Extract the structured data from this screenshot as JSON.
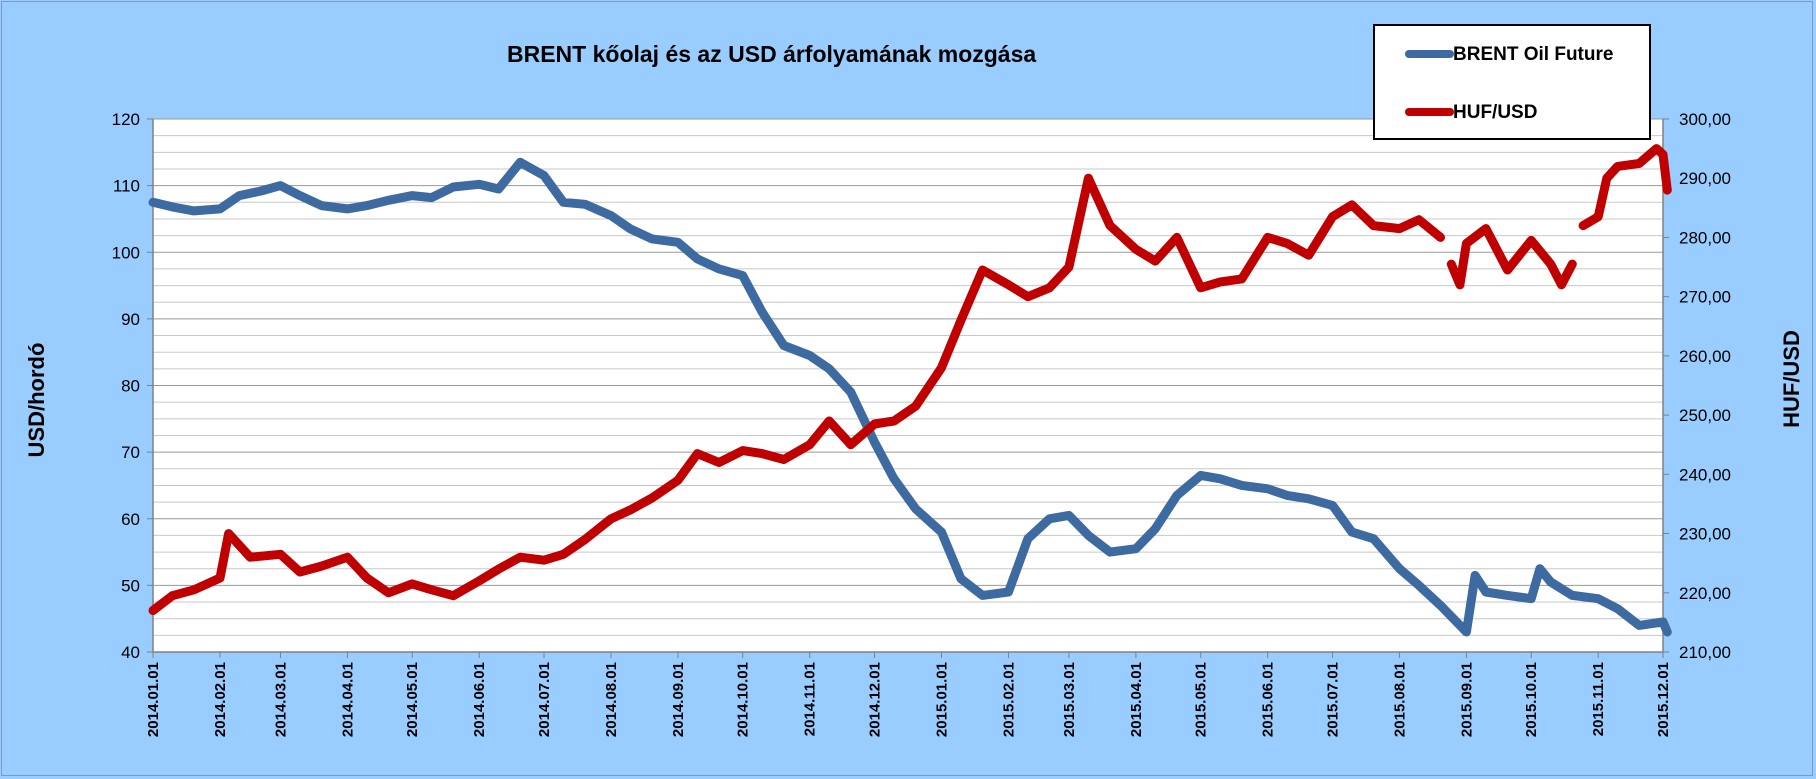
{
  "chart_data": {
    "type": "line",
    "title": "BRENT kőolaj és az USD árfolyamának mozgása",
    "ylabel": "USD/hordó",
    "y2label": "HUF/USD",
    "ylim": [
      40,
      120
    ],
    "y2lim": [
      210,
      300
    ],
    "y_ticks": [
      "120",
      "110",
      "100",
      "90",
      "80",
      "70",
      "60",
      "50",
      "40"
    ],
    "y2_ticks": [
      "300,00",
      "290,00",
      "280,00",
      "270,00",
      "260,00",
      "250,00",
      "240,00",
      "230,00",
      "220,00",
      "210,00"
    ],
    "x_range": [
      "2014.01.01",
      "2015.12.01"
    ],
    "categories": [
      "2014.01.01",
      "2014.02.01",
      "2014.03.01",
      "2014.04.01",
      "2014.05.01",
      "2014.06.01",
      "2014.07.01",
      "2014.08.01",
      "2014.09.01",
      "2014.10.01",
      "2014.11.01",
      "2014.12.01",
      "2015.01.01",
      "2015.02.01",
      "2015.03.01",
      "2015.04.01",
      "2015.05.01",
      "2015.06.01",
      "2015.07.01",
      "2015.08.01",
      "2015.09.01",
      "2015.10.01",
      "2015.11.01",
      "2015.12.01"
    ],
    "grid": true,
    "legend_position": "top-right",
    "series": [
      {
        "name": "BRENT Oil Future",
        "axis": "left",
        "color": "#3d6aa0",
        "points": [
          [
            "2014.01.01",
            107.5
          ],
          [
            "2014.01.10",
            106.8
          ],
          [
            "2014.01.20",
            106.2
          ],
          [
            "2014.02.01",
            106.5
          ],
          [
            "2014.02.10",
            108.5
          ],
          [
            "2014.02.20",
            109.2
          ],
          [
            "2014.03.01",
            110.0
          ],
          [
            "2014.03.10",
            108.5
          ],
          [
            "2014.03.20",
            107.0
          ],
          [
            "2014.04.01",
            106.5
          ],
          [
            "2014.04.10",
            107.0
          ],
          [
            "2014.04.20",
            107.8
          ],
          [
            "2014.05.01",
            108.5
          ],
          [
            "2014.05.10",
            108.2
          ],
          [
            "2014.05.20",
            109.8
          ],
          [
            "2014.06.01",
            110.2
          ],
          [
            "2014.06.10",
            109.5
          ],
          [
            "2014.06.20",
            113.5
          ],
          [
            "2014.07.01",
            111.5
          ],
          [
            "2014.07.10",
            107.5
          ],
          [
            "2014.07.20",
            107.2
          ],
          [
            "2014.08.01",
            105.5
          ],
          [
            "2014.08.10",
            103.5
          ],
          [
            "2014.08.20",
            102.0
          ],
          [
            "2014.09.01",
            101.5
          ],
          [
            "2014.09.10",
            99.0
          ],
          [
            "2014.09.20",
            97.5
          ],
          [
            "2014.10.01",
            96.5
          ],
          [
            "2014.10.10",
            91.0
          ],
          [
            "2014.10.20",
            86.0
          ],
          [
            "2014.11.01",
            84.5
          ],
          [
            "2014.11.10",
            82.5
          ],
          [
            "2014.11.20",
            79.0
          ],
          [
            "2014.12.01",
            71.5
          ],
          [
            "2014.12.10",
            66.0
          ],
          [
            "2014.12.20",
            61.5
          ],
          [
            "2015.01.01",
            58.0
          ],
          [
            "2015.01.10",
            51.0
          ],
          [
            "2015.01.20",
            48.5
          ],
          [
            "2015.02.01",
            49.0
          ],
          [
            "2015.02.10",
            57.0
          ],
          [
            "2015.02.20",
            60.0
          ],
          [
            "2015.03.01",
            60.5
          ],
          [
            "2015.03.10",
            57.5
          ],
          [
            "2015.03.20",
            55.0
          ],
          [
            "2015.04.01",
            55.5
          ],
          [
            "2015.04.10",
            58.5
          ],
          [
            "2015.04.20",
            63.5
          ],
          [
            "2015.05.01",
            66.5
          ],
          [
            "2015.05.10",
            66.0
          ],
          [
            "2015.05.20",
            65.0
          ],
          [
            "2015.06.01",
            64.5
          ],
          [
            "2015.06.10",
            63.5
          ],
          [
            "2015.06.20",
            63.0
          ],
          [
            "2015.07.01",
            62.0
          ],
          [
            "2015.07.10",
            58.0
          ],
          [
            "2015.07.20",
            57.0
          ],
          [
            "2015.08.01",
            52.5
          ],
          [
            "2015.08.10",
            50.0
          ],
          [
            "2015.08.20",
            47.0
          ],
          [
            "2015.09.01",
            43.0
          ],
          [
            "2015.09.05",
            51.5
          ],
          [
            "2015.09.10",
            49.0
          ],
          [
            "2015.09.20",
            48.5
          ],
          [
            "2015.10.01",
            48.0
          ],
          [
            "2015.10.05",
            52.5
          ],
          [
            "2015.10.10",
            50.5
          ],
          [
            "2015.10.20",
            48.5
          ],
          [
            "2015.11.01",
            48.0
          ],
          [
            "2015.11.10",
            46.5
          ],
          [
            "2015.11.20",
            44.0
          ],
          [
            "2015.12.01",
            44.5
          ],
          [
            "2015.12.03",
            43.0
          ]
        ]
      },
      {
        "name": "HUF/USD",
        "axis": "right",
        "color": "#c00000",
        "segments": [
          [
            [
              "2014.01.01",
              217.0
            ],
            [
              "2014.01.10",
              219.5
            ],
            [
              "2014.01.20",
              220.5
            ],
            [
              "2014.02.01",
              222.5
            ],
            [
              "2014.02.05",
              230.0
            ],
            [
              "2014.02.15",
              226.0
            ],
            [
              "2014.03.01",
              226.5
            ],
            [
              "2014.03.10",
              223.5
            ],
            [
              "2014.03.20",
              224.5
            ],
            [
              "2014.04.01",
              226.0
            ],
            [
              "2014.04.10",
              222.5
            ],
            [
              "2014.04.20",
              220.0
            ],
            [
              "2014.05.01",
              221.5
            ],
            [
              "2014.05.10",
              220.5
            ],
            [
              "2014.05.20",
              219.5
            ],
            [
              "2014.06.01",
              222.0
            ],
            [
              "2014.06.10",
              224.0
            ],
            [
              "2014.06.20",
              226.0
            ],
            [
              "2014.07.01",
              225.5
            ],
            [
              "2014.07.10",
              226.5
            ],
            [
              "2014.07.20",
              229.0
            ],
            [
              "2014.08.01",
              232.5
            ],
            [
              "2014.08.10",
              234.0
            ],
            [
              "2014.08.20",
              236.0
            ],
            [
              "2014.09.01",
              239.0
            ],
            [
              "2014.09.10",
              243.5
            ],
            [
              "2014.09.20",
              242.0
            ],
            [
              "2014.10.01",
              244.0
            ],
            [
              "2014.10.10",
              243.5
            ],
            [
              "2014.10.20",
              242.5
            ],
            [
              "2014.11.01",
              245.0
            ],
            [
              "2014.11.10",
              249.0
            ],
            [
              "2014.11.20",
              245.0
            ],
            [
              "2014.12.01",
              248.5
            ],
            [
              "2014.12.10",
              249.0
            ],
            [
              "2014.12.20",
              251.5
            ],
            [
              "2015.01.01",
              258.0
            ],
            [
              "2015.01.10",
              266.0
            ],
            [
              "2015.01.20",
              274.5
            ],
            [
              "2015.02.01",
              272.0
            ],
            [
              "2015.02.10",
              270.0
            ],
            [
              "2015.02.20",
              271.5
            ],
            [
              "2015.03.01",
              275.0
            ],
            [
              "2015.03.10",
              290.0
            ],
            [
              "2015.03.20",
              282.0
            ],
            [
              "2015.04.01",
              278.0
            ],
            [
              "2015.04.10",
              276.0
            ],
            [
              "2015.04.20",
              280.0
            ],
            [
              "2015.05.01",
              271.5
            ],
            [
              "2015.05.10",
              272.5
            ],
            [
              "2015.05.20",
              273.0
            ],
            [
              "2015.06.01",
              280.0
            ],
            [
              "2015.06.10",
              279.0
            ],
            [
              "2015.06.20",
              277.0
            ],
            [
              "2015.07.01",
              283.5
            ],
            [
              "2015.07.10",
              285.5
            ],
            [
              "2015.07.20",
              282.0
            ],
            [
              "2015.08.01",
              281.5
            ],
            [
              "2015.08.10",
              283.0
            ],
            [
              "2015.08.20",
              280.0
            ]
          ],
          [
            [
              "2015.08.25",
              275.5
            ],
            [
              "2015.08.29",
              272.0
            ],
            [
              "2015.09.01",
              279.0
            ],
            [
              "2015.09.10",
              281.5
            ],
            [
              "2015.09.20",
              274.5
            ],
            [
              "2015.10.01",
              279.5
            ],
            [
              "2015.10.10",
              275.5
            ],
            [
              "2015.10.15",
              272.0
            ],
            [
              "2015.10.20",
              275.5
            ]
          ],
          [
            [
              "2015.10.25",
              282.0
            ],
            [
              "2015.11.01",
              283.5
            ],
            [
              "2015.11.05",
              290.0
            ],
            [
              "2015.11.10",
              292.0
            ],
            [
              "2015.11.20",
              292.5
            ],
            [
              "2015.11.28",
              295.0
            ],
            [
              "2015.12.01",
              294.0
            ],
            [
              "2015.12.03",
              288.0
            ]
          ]
        ]
      }
    ]
  }
}
